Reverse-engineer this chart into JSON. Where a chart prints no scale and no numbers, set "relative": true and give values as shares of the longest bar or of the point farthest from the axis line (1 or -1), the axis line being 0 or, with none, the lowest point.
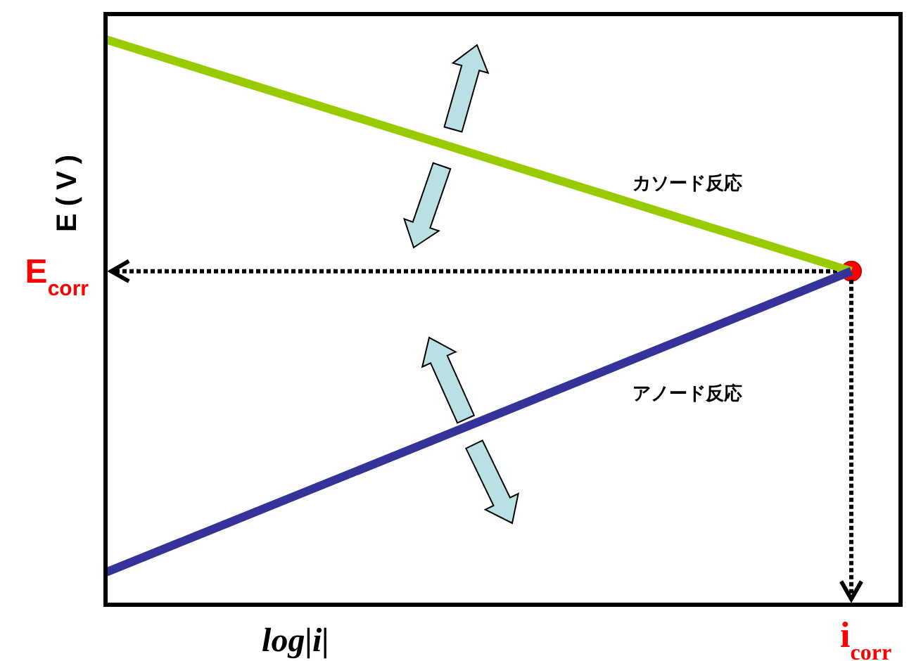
{
  "chart_data": {
    "type": "line",
    "relative": true,
    "xlabel": "log|i|",
    "ylabel": "E(V)",
    "categories": [
      null,
      null
    ],
    "series": [
      {
        "name": "カソード反応",
        "color": "#99cc00",
        "values": [
          1,
          0.59
        ]
      },
      {
        "name": "アノード反応",
        "color": "#333399",
        "values": [
          0.057,
          0.59
        ]
      }
    ],
    "ref_lines": [
      {
        "axis": "y",
        "value": 0.59,
        "label": "E$_{corr}$",
        "line_style": "dotted"
      }
    ],
    "annotations": [
      "i$_{corr}$"
    ]
  }
}
